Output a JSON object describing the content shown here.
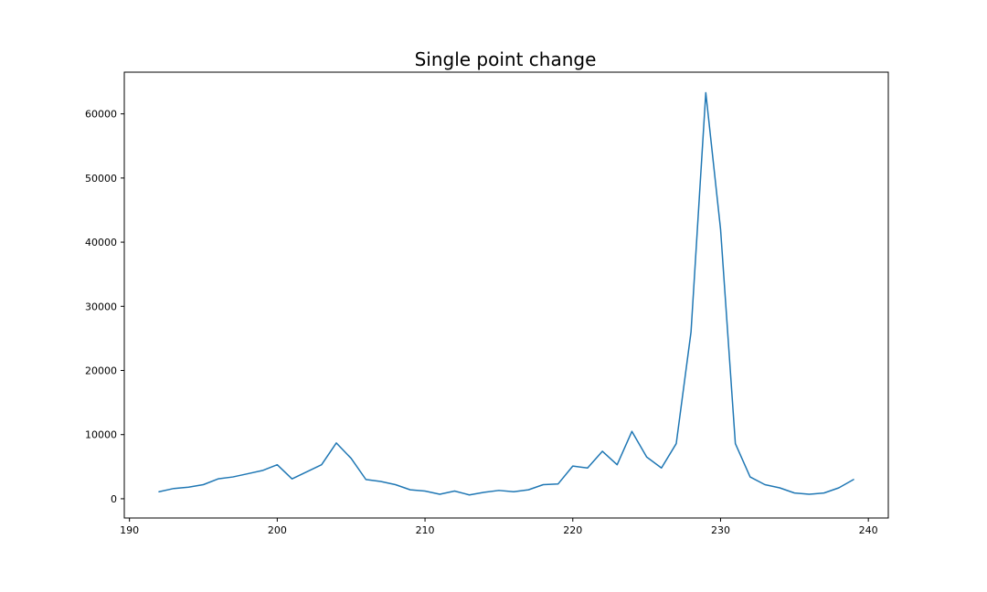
{
  "chart_data": {
    "type": "line",
    "title": "Single point change",
    "xlabel": "",
    "ylabel": "",
    "xlim": [
      189.65,
      241.35
    ],
    "ylim": [
      -3000,
      66500
    ],
    "x_ticks": [
      190,
      200,
      210,
      220,
      230,
      240
    ],
    "y_ticks": [
      0,
      10000,
      20000,
      30000,
      40000,
      50000,
      60000
    ],
    "grid": false,
    "legend": "none",
    "colors": {
      "line": "#1f77b4",
      "axes": "#000000",
      "background": "#ffffff"
    },
    "series": [
      {
        "x": [
          192,
          193,
          194,
          195,
          196,
          197,
          198,
          199,
          200,
          201,
          202,
          203,
          204,
          205,
          206,
          207,
          208,
          209,
          210,
          211,
          212,
          213,
          214,
          215,
          216,
          217,
          218,
          219,
          220,
          221,
          222,
          223,
          224,
          225,
          226,
          227,
          228,
          229,
          230,
          231,
          232,
          233,
          234,
          235,
          236,
          237,
          238,
          239
        ],
        "values": [
          1100,
          1600,
          1800,
          2200,
          3100,
          3400,
          3900,
          4400,
          5300,
          3100,
          4200,
          5300,
          8700,
          6300,
          3000,
          2700,
          2200,
          1400,
          1200,
          700,
          1200,
          600,
          1000,
          1300,
          1100,
          1400,
          2200,
          2300,
          5100,
          4800,
          7400,
          5300,
          10500,
          6500,
          4800,
          8600,
          26000,
          63300,
          42000,
          8600,
          3400,
          2200,
          1700,
          900,
          700,
          900,
          1700,
          3000
        ]
      }
    ]
  }
}
